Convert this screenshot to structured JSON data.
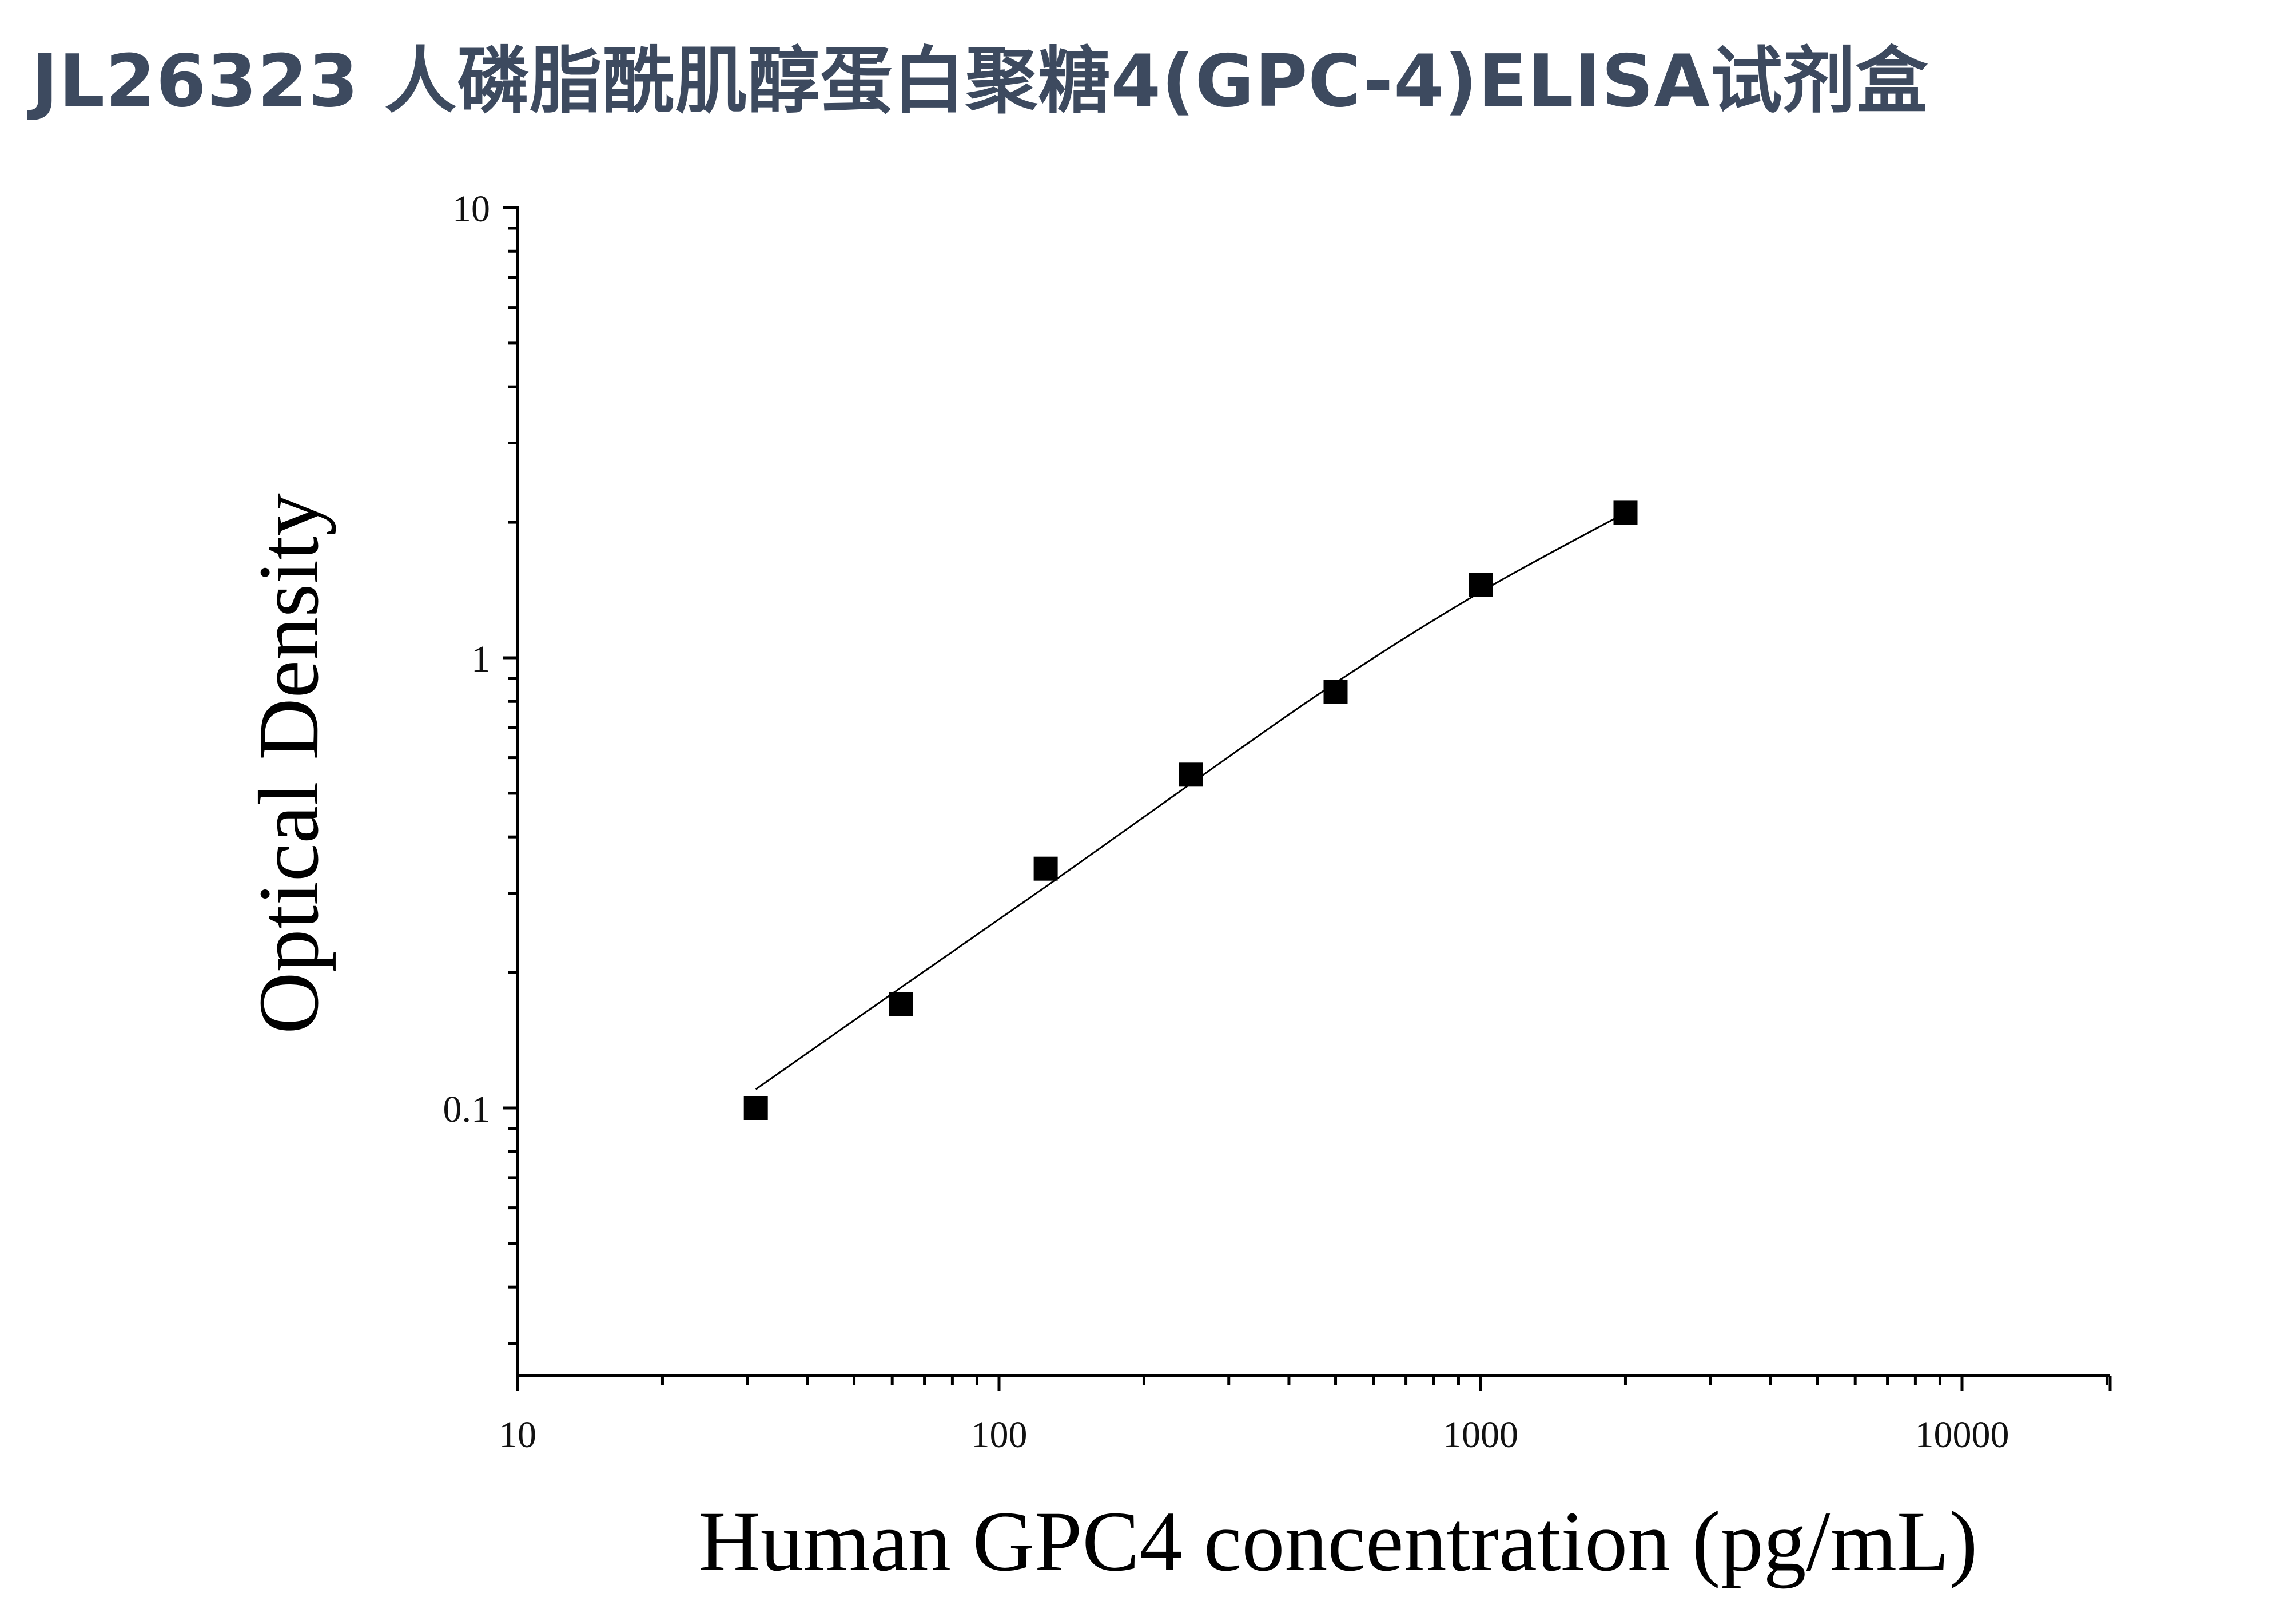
{
  "title": "JL26323 人磷脂酰肌醇蛋白聚糖4(GPC-4)ELISA试剂盒",
  "chart_data": {
    "type": "scatter",
    "title": "JL26323 人磷脂酰肌醇蛋白聚糖4(GPC-4)ELISA试剂盒",
    "xlabel": "Human GPC4 concentration (pg/mL)",
    "ylabel": "Optical Density",
    "xscale": "log",
    "yscale": "log",
    "xlim": [
      10,
      20000
    ],
    "ylim": [
      0.025,
      10
    ],
    "xticks": [
      10,
      100,
      1000,
      10000
    ],
    "xtick_labels": [
      "10",
      "100",
      "1000",
      "10000"
    ],
    "yticks": [
      0.1,
      1,
      10
    ],
    "ytick_labels": [
      "0.1",
      "1",
      "10"
    ],
    "grid": false,
    "legend": false,
    "series": [
      {
        "marker": "square",
        "color": "#000000",
        "x": [
          31.25,
          62.5,
          125,
          250,
          500,
          1000,
          2000
        ],
        "y": [
          0.1,
          0.17,
          0.34,
          0.55,
          0.84,
          1.45,
          2.1
        ]
      }
    ],
    "fit_curve": {
      "type": "smooth",
      "color": "#000000",
      "x": [
        31.25,
        62.5,
        125,
        250,
        500,
        1000,
        2000
      ],
      "y": [
        0.11,
        0.185,
        0.31,
        0.525,
        0.88,
        1.4,
        2.1
      ]
    }
  }
}
